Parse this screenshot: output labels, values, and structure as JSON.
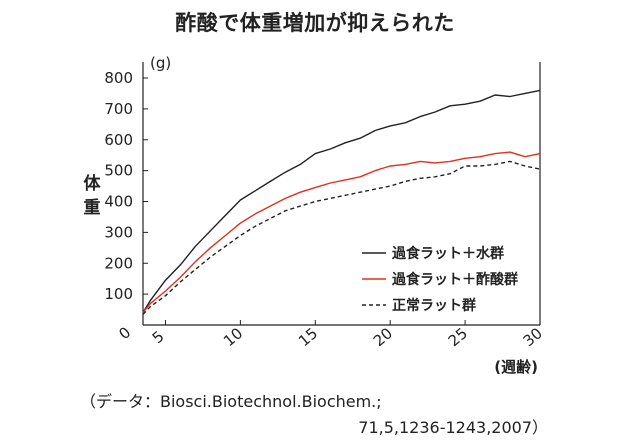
{
  "title": "酢酸で体重増加が抑えられた",
  "chart_data": {
    "type": "line",
    "unit_label": "(g)",
    "ylabel": "体重",
    "xlabel": "(週齢)",
    "xlim": [
      3.5,
      30
    ],
    "ylim": [
      0,
      800
    ],
    "y_ticks": [
      0,
      100,
      200,
      300,
      400,
      500,
      600,
      700,
      800
    ],
    "x_ticks": [
      5,
      10,
      15,
      20,
      25,
      30
    ],
    "grid": false,
    "legend_position": "bottom-right",
    "series": [
      {
        "name": "過食ラット＋水群",
        "color": "#222222",
        "dash": "solid",
        "points": [
          [
            3.5,
            40
          ],
          [
            4,
            80
          ],
          [
            5,
            145
          ],
          [
            6,
            195
          ],
          [
            7,
            255
          ],
          [
            8,
            305
          ],
          [
            9,
            355
          ],
          [
            10,
            405
          ],
          [
            11,
            435
          ],
          [
            12,
            465
          ],
          [
            13,
            495
          ],
          [
            14,
            520
          ],
          [
            15,
            555
          ],
          [
            16,
            570
          ],
          [
            17,
            590
          ],
          [
            18,
            605
          ],
          [
            19,
            630
          ],
          [
            20,
            645
          ],
          [
            21,
            655
          ],
          [
            22,
            675
          ],
          [
            23,
            690
          ],
          [
            24,
            710
          ],
          [
            25,
            715
          ],
          [
            26,
            725
          ],
          [
            27,
            745
          ],
          [
            28,
            740
          ],
          [
            29,
            750
          ],
          [
            30,
            760
          ]
        ]
      },
      {
        "name": "過食ラット＋酢酸群",
        "color": "#e03020",
        "dash": "solid",
        "points": [
          [
            3.5,
            40
          ],
          [
            4,
            70
          ],
          [
            5,
            110
          ],
          [
            6,
            155
          ],
          [
            7,
            205
          ],
          [
            8,
            250
          ],
          [
            9,
            290
          ],
          [
            10,
            330
          ],
          [
            11,
            360
          ],
          [
            12,
            385
          ],
          [
            13,
            410
          ],
          [
            14,
            430
          ],
          [
            15,
            445
          ],
          [
            16,
            460
          ],
          [
            17,
            470
          ],
          [
            18,
            480
          ],
          [
            19,
            500
          ],
          [
            20,
            515
          ],
          [
            21,
            520
          ],
          [
            22,
            530
          ],
          [
            23,
            525
          ],
          [
            24,
            530
          ],
          [
            25,
            540
          ],
          [
            26,
            545
          ],
          [
            27,
            555
          ],
          [
            28,
            560
          ],
          [
            29,
            545
          ],
          [
            30,
            555
          ]
        ]
      },
      {
        "name": "正常ラット群",
        "color": "#222222",
        "dash": "dashed",
        "points": [
          [
            3.5,
            35
          ],
          [
            4,
            60
          ],
          [
            5,
            95
          ],
          [
            6,
            140
          ],
          [
            7,
            180
          ],
          [
            8,
            220
          ],
          [
            9,
            255
          ],
          [
            10,
            290
          ],
          [
            11,
            320
          ],
          [
            12,
            345
          ],
          [
            13,
            370
          ],
          [
            14,
            385
          ],
          [
            15,
            400
          ],
          [
            16,
            410
          ],
          [
            17,
            420
          ],
          [
            18,
            430
          ],
          [
            19,
            440
          ],
          [
            20,
            450
          ],
          [
            21,
            465
          ],
          [
            22,
            475
          ],
          [
            23,
            480
          ],
          [
            24,
            490
          ],
          [
            25,
            515
          ],
          [
            26,
            515
          ],
          [
            27,
            520
          ],
          [
            28,
            530
          ],
          [
            29,
            515
          ],
          [
            30,
            505
          ]
        ]
      }
    ]
  },
  "source": {
    "line1": "（データ：Biosci.Biotechnol.Biochem.;",
    "line2": "71,5,1236-1243,2007）"
  }
}
